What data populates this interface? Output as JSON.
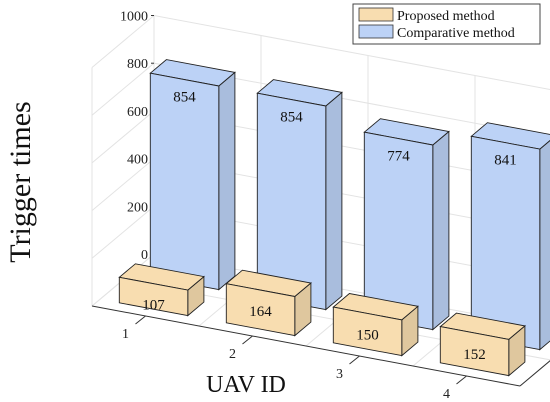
{
  "chart_data": {
    "type": "bar",
    "subtype": "3d-grouped-bar",
    "title": "",
    "xlabel": "UAV ID",
    "ylabel": "Trigger times",
    "categories": [
      "1",
      "2",
      "3",
      "4"
    ],
    "ylim": [
      0,
      1000
    ],
    "yticks": [
      0,
      200,
      400,
      600,
      800,
      1000
    ],
    "grid": true,
    "legend_position": "top-right",
    "series": [
      {
        "name": "Proposed method",
        "values": [
          107,
          164,
          150,
          152
        ],
        "color": "#F8DDB0"
      },
      {
        "name": "Comparative method",
        "values": [
          854,
          854,
          774,
          841
        ],
        "color": "#BCD2F6"
      }
    ],
    "data_labels": true
  }
}
